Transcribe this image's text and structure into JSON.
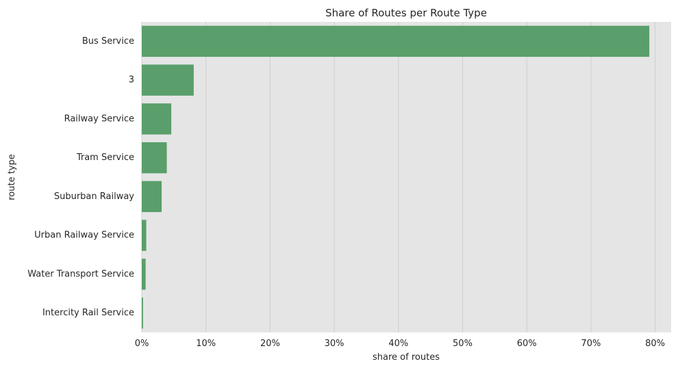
{
  "chart_data": {
    "type": "bar",
    "orientation": "horizontal",
    "title": "Share of Routes per Route Type",
    "xlabel": "share of routes",
    "ylabel": "route type",
    "categories": [
      "Bus Service",
      "3",
      "Railway Service",
      "Tram Service",
      "Suburban Railway",
      "Urban Railway Service",
      "Water Transport Service",
      "Intercity Rail Service"
    ],
    "values": [
      79.1,
      8.1,
      4.6,
      3.9,
      3.1,
      0.7,
      0.6,
      0.2
    ],
    "xlim": [
      0,
      82.5
    ],
    "xticks": [
      0,
      10,
      20,
      30,
      40,
      50,
      60,
      70,
      80
    ],
    "xtick_labels": [
      "0%",
      "10%",
      "20%",
      "30%",
      "40%",
      "50%",
      "60%",
      "70%",
      "80%"
    ],
    "grid": "vertical",
    "colors": {
      "bar": "#5a9f6b",
      "background": "#e5e5e5",
      "grid": "#cfcfcf"
    }
  }
}
